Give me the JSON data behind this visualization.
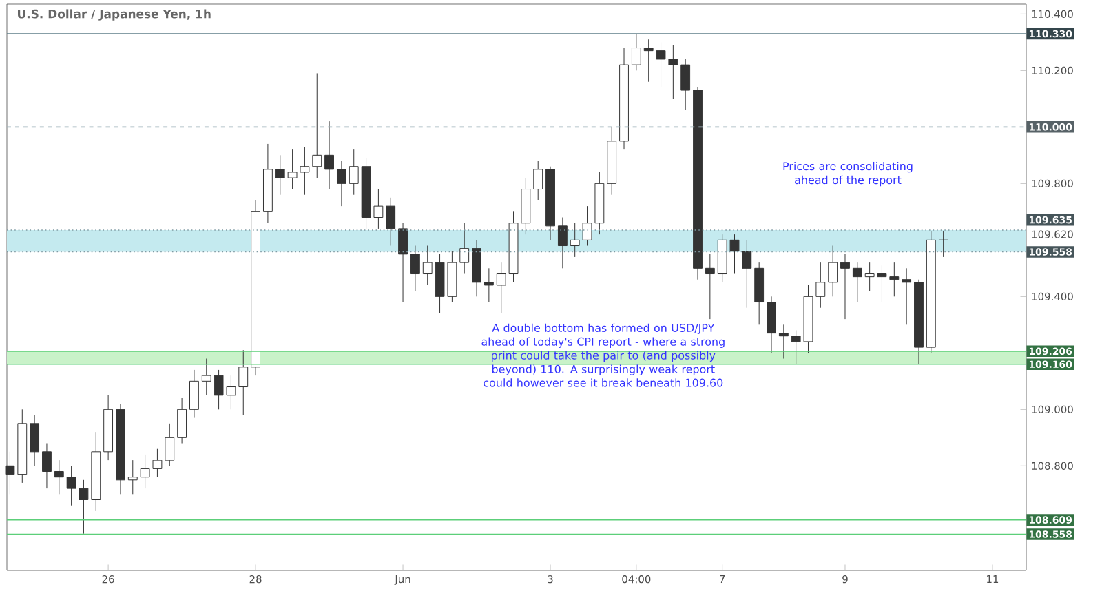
{
  "chart_data": {
    "type": "candlestick",
    "title": "U.S. Dollar / Japanese Yen, 1h",
    "categories": [
      null,
      null,
      null,
      null,
      null,
      null,
      null,
      null,
      "26",
      null,
      null,
      null,
      null,
      null,
      null,
      null,
      null,
      null,
      null,
      null,
      "28",
      null,
      null,
      null,
      null,
      null,
      null,
      null,
      null,
      null,
      null,
      null,
      "Jun",
      null,
      null,
      null,
      null,
      null,
      null,
      null,
      null,
      null,
      null,
      null,
      "3",
      null,
      null,
      null,
      null,
      null,
      null,
      "04:00",
      null,
      null,
      null,
      null,
      null,
      null,
      "7",
      null,
      null,
      null,
      null,
      null,
      null,
      null,
      null,
      null,
      "9",
      null,
      null,
      null,
      null,
      null,
      null,
      null,
      null,
      null,
      null,
      null,
      "11",
      null,
      null
    ],
    "ohlc": [
      [
        108.8,
        108.85,
        108.7,
        108.77
      ],
      [
        108.77,
        109.0,
        108.74,
        108.95
      ],
      [
        108.95,
        108.98,
        108.8,
        108.85
      ],
      [
        108.85,
        108.88,
        108.72,
        108.78
      ],
      [
        108.78,
        108.82,
        108.7,
        108.76
      ],
      [
        108.76,
        108.8,
        108.66,
        108.72
      ],
      [
        108.72,
        108.75,
        108.56,
        108.68
      ],
      [
        108.68,
        108.92,
        108.64,
        108.85
      ],
      [
        108.85,
        109.05,
        108.82,
        109.0
      ],
      [
        109.0,
        109.02,
        108.7,
        108.75
      ],
      [
        108.75,
        108.82,
        108.7,
        108.76
      ],
      [
        108.76,
        108.84,
        108.72,
        108.79
      ],
      [
        108.79,
        108.86,
        108.76,
        108.82
      ],
      [
        108.82,
        108.95,
        108.8,
        108.9
      ],
      [
        108.9,
        109.04,
        108.88,
        109.0
      ],
      [
        109.0,
        109.14,
        108.97,
        109.1
      ],
      [
        109.1,
        109.18,
        109.05,
        109.12
      ],
      [
        109.12,
        109.14,
        109.0,
        109.05
      ],
      [
        109.05,
        109.12,
        109.0,
        109.08
      ],
      [
        109.08,
        109.21,
        108.98,
        109.15
      ],
      [
        109.15,
        109.74,
        109.12,
        109.7
      ],
      [
        109.7,
        109.94,
        109.66,
        109.85
      ],
      [
        109.85,
        109.9,
        109.76,
        109.82
      ],
      [
        109.82,
        109.92,
        109.78,
        109.84
      ],
      [
        109.84,
        109.93,
        109.76,
        109.86
      ],
      [
        109.86,
        110.19,
        109.82,
        109.9
      ],
      [
        109.9,
        110.02,
        109.78,
        109.85
      ],
      [
        109.85,
        109.88,
        109.72,
        109.8
      ],
      [
        109.8,
        109.92,
        109.76,
        109.86
      ],
      [
        109.86,
        109.89,
        109.64,
        109.68
      ],
      [
        109.68,
        109.78,
        109.64,
        109.72
      ],
      [
        109.72,
        109.75,
        109.58,
        109.64
      ],
      [
        109.64,
        109.66,
        109.38,
        109.55
      ],
      [
        109.55,
        109.58,
        109.42,
        109.48
      ],
      [
        109.48,
        109.58,
        109.44,
        109.52
      ],
      [
        109.52,
        109.55,
        109.34,
        109.4
      ],
      [
        109.4,
        109.56,
        109.38,
        109.52
      ],
      [
        109.52,
        109.66,
        109.48,
        109.57
      ],
      [
        109.57,
        109.6,
        109.4,
        109.45
      ],
      [
        109.45,
        109.5,
        109.38,
        109.44
      ],
      [
        109.44,
        109.52,
        109.34,
        109.48
      ],
      [
        109.48,
        109.7,
        109.45,
        109.66
      ],
      [
        109.66,
        109.82,
        109.62,
        109.78
      ],
      [
        109.78,
        109.88,
        109.74,
        109.85
      ],
      [
        109.85,
        109.86,
        109.6,
        109.65
      ],
      [
        109.65,
        109.68,
        109.5,
        109.58
      ],
      [
        109.58,
        109.66,
        109.54,
        109.6
      ],
      [
        109.6,
        109.72,
        109.58,
        109.66
      ],
      [
        109.66,
        109.84,
        109.62,
        109.8
      ],
      [
        109.8,
        110.0,
        109.76,
        109.95
      ],
      [
        109.95,
        110.28,
        109.92,
        110.22
      ],
      [
        110.22,
        110.33,
        110.2,
        110.28
      ],
      [
        110.28,
        110.31,
        110.16,
        110.27
      ],
      [
        110.27,
        110.3,
        110.14,
        110.24
      ],
      [
        110.24,
        110.29,
        110.1,
        110.22
      ],
      [
        110.22,
        110.24,
        110.06,
        110.13
      ],
      [
        110.13,
        110.14,
        109.46,
        109.5
      ],
      [
        109.5,
        109.55,
        109.32,
        109.48
      ],
      [
        109.48,
        109.62,
        109.45,
        109.6
      ],
      [
        109.6,
        109.62,
        109.48,
        109.56
      ],
      [
        109.56,
        109.6,
        109.36,
        109.5
      ],
      [
        109.5,
        109.52,
        109.3,
        109.38
      ],
      [
        109.38,
        109.4,
        109.2,
        109.27
      ],
      [
        109.27,
        109.3,
        109.18,
        109.26
      ],
      [
        109.26,
        109.28,
        109.16,
        109.24
      ],
      [
        109.24,
        109.44,
        109.2,
        109.4
      ],
      [
        109.4,
        109.52,
        109.36,
        109.45
      ],
      [
        109.45,
        109.58,
        109.4,
        109.52
      ],
      [
        109.52,
        109.55,
        109.32,
        109.5
      ],
      [
        109.5,
        109.52,
        109.38,
        109.47
      ],
      [
        109.47,
        109.52,
        109.42,
        109.48
      ],
      [
        109.48,
        109.51,
        109.38,
        109.47
      ],
      [
        109.47,
        109.52,
        109.4,
        109.46
      ],
      [
        109.46,
        109.5,
        109.3,
        109.45
      ],
      [
        109.45,
        109.46,
        109.16,
        109.22
      ],
      [
        109.22,
        109.63,
        109.2,
        109.6
      ],
      [
        109.6,
        109.63,
        109.54,
        109.6
      ],
      null,
      null,
      null,
      null,
      null,
      null
    ],
    "color": "#333333",
    "ylim": [
      108.43,
      110.435
    ],
    "yticks": [
      {
        "value": 110.4,
        "label": "110.400"
      },
      {
        "value": 110.2,
        "label": "110.200"
      },
      {
        "value": 109.8,
        "label": "109.800"
      },
      {
        "value": 109.62,
        "label": "109.620"
      },
      {
        "value": 109.4,
        "label": "109.400"
      },
      {
        "value": 109.0,
        "label": "109.000"
      },
      {
        "value": 108.8,
        "label": "108.800"
      }
    ],
    "ref_lines": [
      {
        "axis": "y",
        "value": 110.33,
        "label": "110.330",
        "color": "#5f7f8a"
      },
      {
        "axis": "y",
        "value": 110.0,
        "label": "110.000",
        "color": "#9fb3bb",
        "line_style": "dashed"
      },
      {
        "axis": "y",
        "value": 109.635,
        "label": "109.635",
        "color": "#7f9aa3",
        "line_style": "dotted"
      },
      {
        "axis": "y",
        "value": 109.558,
        "label": "109.558",
        "color": "#7f9aa3",
        "line_style": "dotted"
      },
      {
        "axis": "y",
        "value": 109.206,
        "label": "109.206",
        "color": "#5ccf79"
      },
      {
        "axis": "y",
        "value": 109.16,
        "label": "109.160",
        "color": "#5ccf79"
      },
      {
        "axis": "y",
        "value": 108.609,
        "label": "108.609",
        "color": "#5ccf79"
      },
      {
        "axis": "y",
        "value": 108.558,
        "label": "108.558",
        "color": "#5ccf79"
      }
    ],
    "bands": [
      {
        "axis": "y",
        "from": 109.558,
        "to": 109.635,
        "color": "#c4eaef"
      },
      {
        "axis": "y",
        "from": 109.16,
        "to": 109.206,
        "color": "#c9f2c9"
      }
    ],
    "annotations": [
      "A double bottom has formed on USD/JPY ahead of today's CPI report - where a strong print could take the pair to (and possibly beyond) 110. A surprisingly weak report could however see it break beneath 109.60",
      "Prices are consolidating ahead of the report"
    ],
    "grid": false
  }
}
